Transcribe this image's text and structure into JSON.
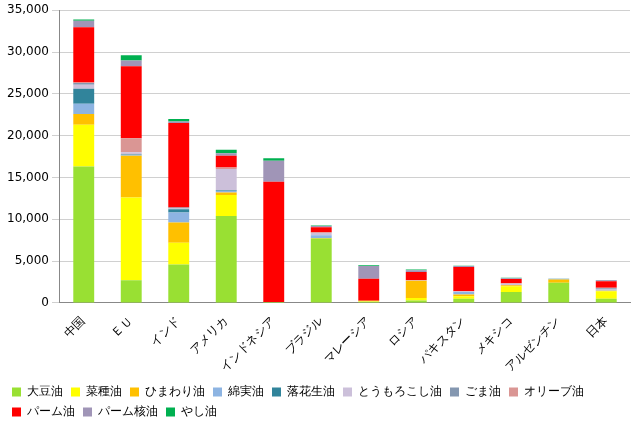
{
  "chart_data": {
    "type": "bar",
    "stacked": true,
    "grid": true,
    "legend": "bottom",
    "categories": [
      "中国",
      "ＥＵ",
      "インド",
      "アメリカ",
      "インドネシア",
      "ブラジル",
      "マレーシア",
      "ロシア",
      "パキスタン",
      "メキシコ",
      "アルゼンチン",
      "日本"
    ],
    "ylim": [
      0,
      35000
    ],
    "yticks": [
      0,
      {
        "value": 5000,
        "label": "5,000"
      },
      {
        "value": 10000,
        "label": "10,000"
      },
      {
        "value": 15000,
        "label": "15,000"
      },
      {
        "value": 20000,
        "label": "20,000"
      },
      {
        "value": 25000,
        "label": "25,000"
      },
      {
        "value": 30000,
        "label": "30,000"
      },
      {
        "value": 35000,
        "label": "35,000"
      }
    ],
    "series": [
      {
        "name": "大豆油",
        "color": "#99e033",
        "values": [
          16300,
          2700,
          4600,
          10400,
          100,
          7700,
          150,
          300,
          500,
          1300,
          2400,
          500
        ]
      },
      {
        "name": "菜種油",
        "color": "#ffff00",
        "values": [
          5000,
          9900,
          2600,
          2500,
          0,
          0,
          50,
          300,
          300,
          700,
          0,
          900
        ]
      },
      {
        "name": "ひまわり油",
        "color": "#ffc000",
        "values": [
          1300,
          5000,
          2400,
          300,
          0,
          50,
          50,
          2050,
          200,
          100,
          400,
          50
        ]
      },
      {
        "name": "綿実油",
        "color": "#8db4e2",
        "values": [
          1200,
          50,
          1200,
          200,
          0,
          350,
          0,
          0,
          300,
          50,
          30,
          50
        ]
      },
      {
        "name": "落花生油",
        "color": "#31849b",
        "values": [
          1800,
          100,
          400,
          100,
          0,
          0,
          0,
          0,
          0,
          0,
          50,
          0
        ]
      },
      {
        "name": "とうもろこし油",
        "color": "#ccc0da",
        "values": [
          500,
          250,
          100,
          2500,
          0,
          250,
          0,
          50,
          100,
          150,
          0,
          100
        ]
      },
      {
        "name": "ごま油",
        "color": "#8497b0",
        "values": [
          200,
          0,
          100,
          0,
          0,
          0,
          0,
          0,
          0,
          0,
          0,
          150
        ]
      },
      {
        "name": "オリーブ油",
        "color": "#da9694",
        "values": [
          50,
          1700,
          0,
          200,
          0,
          100,
          0,
          0,
          0,
          50,
          20,
          50
        ]
      },
      {
        "name": "パーム油",
        "color": "#ff0000",
        "values": [
          6600,
          8600,
          10100,
          1400,
          14400,
          600,
          2650,
          1000,
          2900,
          500,
          0,
          800
        ]
      },
      {
        "name": "パーム核油",
        "color": "#a095b7",
        "values": [
          800,
          700,
          200,
          300,
          2500,
          150,
          1500,
          200,
          100,
          100,
          0,
          100
        ]
      },
      {
        "name": "やし油",
        "color": "#00b050",
        "values": [
          150,
          600,
          300,
          400,
          300,
          50,
          100,
          100,
          50,
          50,
          0,
          50
        ]
      }
    ]
  }
}
